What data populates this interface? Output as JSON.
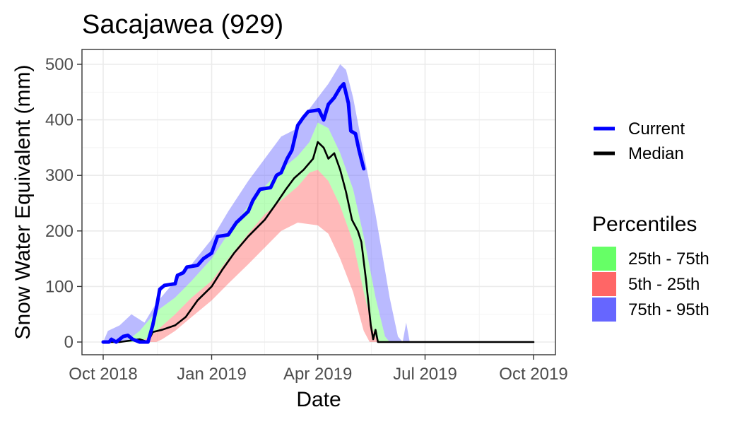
{
  "chart_data": {
    "type": "area",
    "title": "Sacajawea (929)",
    "xlabel": "Date",
    "ylabel": "Snow Water Equivalent (mm)",
    "xlim": [
      "2018-10-01",
      "2019-10-01"
    ],
    "ylim": [
      0,
      525
    ],
    "x_ticks": [
      {
        "date": "2018-10-01",
        "label": "Oct 2018"
      },
      {
        "date": "2019-01-01",
        "label": "Jan 2019"
      },
      {
        "date": "2019-04-01",
        "label": "Apr 2019"
      },
      {
        "date": "2019-07-01",
        "label": "Jul 2019"
      },
      {
        "date": "2019-10-01",
        "label": "Oct 2019"
      }
    ],
    "y_ticks": [
      0,
      100,
      200,
      300,
      400,
      500
    ],
    "grid": true,
    "legend_position": "right",
    "legend": {
      "lines_title": "",
      "lines": [
        {
          "name": "Current",
          "color": "#0000FF"
        },
        {
          "name": "Median",
          "color": "#000000"
        }
      ],
      "bands_title": "Percentiles",
      "bands": [
        {
          "name": "25th - 75th",
          "color": "#66FF66"
        },
        {
          "name": "5th - 25th",
          "color": "#FF6666"
        },
        {
          "name": "75th - 95th",
          "color": "#6666FF"
        }
      ]
    },
    "bands": {
      "p5": [
        [
          "2018-10-01",
          0
        ],
        [
          "2018-11-15",
          0
        ],
        [
          "2018-11-20",
          5
        ],
        [
          "2018-12-01",
          20
        ],
        [
          "2018-12-15",
          45
        ],
        [
          "2019-01-01",
          75
        ],
        [
          "2019-01-15",
          105
        ],
        [
          "2019-02-01",
          140
        ],
        [
          "2019-02-15",
          170
        ],
        [
          "2019-03-01",
          200
        ],
        [
          "2019-03-15",
          215
        ],
        [
          "2019-04-01",
          210
        ],
        [
          "2019-04-10",
          195
        ],
        [
          "2019-04-20",
          150
        ],
        [
          "2019-05-01",
          90
        ],
        [
          "2019-05-10",
          20
        ],
        [
          "2019-05-15",
          0
        ],
        [
          "2019-10-01",
          0
        ]
      ],
      "p25": [
        [
          "2018-10-01",
          0
        ],
        [
          "2018-11-01",
          0
        ],
        [
          "2018-11-10",
          10
        ],
        [
          "2018-12-01",
          50
        ],
        [
          "2018-12-15",
          80
        ],
        [
          "2019-01-01",
          110
        ],
        [
          "2019-01-15",
          150
        ],
        [
          "2019-02-01",
          195
        ],
        [
          "2019-02-15",
          230
        ],
        [
          "2019-03-01",
          255
        ],
        [
          "2019-03-15",
          280
        ],
        [
          "2019-03-25",
          305
        ],
        [
          "2019-04-01",
          310
        ],
        [
          "2019-04-10",
          290
        ],
        [
          "2019-04-20",
          245
        ],
        [
          "2019-05-01",
          180
        ],
        [
          "2019-05-10",
          90
        ],
        [
          "2019-05-18",
          20
        ],
        [
          "2019-05-22",
          0
        ],
        [
          "2019-10-01",
          0
        ]
      ],
      "p75": [
        [
          "2018-10-01",
          0
        ],
        [
          "2018-10-20",
          0
        ],
        [
          "2018-11-01",
          20
        ],
        [
          "2018-11-15",
          55
        ],
        [
          "2018-12-01",
          80
        ],
        [
          "2018-12-15",
          110
        ],
        [
          "2019-01-01",
          150
        ],
        [
          "2019-01-15",
          195
        ],
        [
          "2019-02-01",
          245
        ],
        [
          "2019-02-15",
          280
        ],
        [
          "2019-03-01",
          310
        ],
        [
          "2019-03-15",
          335
        ],
        [
          "2019-03-25",
          360
        ],
        [
          "2019-04-01",
          395
        ],
        [
          "2019-04-10",
          385
        ],
        [
          "2019-04-20",
          340
        ],
        [
          "2019-05-01",
          275
        ],
        [
          "2019-05-10",
          190
        ],
        [
          "2019-05-20",
          80
        ],
        [
          "2019-05-28",
          10
        ],
        [
          "2019-06-01",
          0
        ],
        [
          "2019-10-01",
          0
        ]
      ],
      "p95": [
        [
          "2018-10-01",
          0
        ],
        [
          "2018-10-05",
          20
        ],
        [
          "2018-10-15",
          30
        ],
        [
          "2018-10-25",
          50
        ],
        [
          "2018-11-05",
          35
        ],
        [
          "2018-11-15",
          70
        ],
        [
          "2018-12-01",
          110
        ],
        [
          "2018-12-15",
          140
        ],
        [
          "2019-01-01",
          185
        ],
        [
          "2019-01-15",
          235
        ],
        [
          "2019-02-01",
          290
        ],
        [
          "2019-02-15",
          330
        ],
        [
          "2019-03-01",
          370
        ],
        [
          "2019-03-15",
          385
        ],
        [
          "2019-03-25",
          420
        ],
        [
          "2019-04-01",
          440
        ],
        [
          "2019-04-10",
          465
        ],
        [
          "2019-04-20",
          500
        ],
        [
          "2019-04-25",
          490
        ],
        [
          "2019-05-01",
          440
        ],
        [
          "2019-05-10",
          340
        ],
        [
          "2019-05-20",
          230
        ],
        [
          "2019-06-01",
          80
        ],
        [
          "2019-06-08",
          10
        ],
        [
          "2019-06-12",
          0
        ],
        [
          "2019-06-15",
          35
        ],
        [
          "2019-06-18",
          0
        ],
        [
          "2019-10-01",
          0
        ]
      ]
    },
    "series": [
      {
        "name": "Current",
        "points": [
          [
            "2018-10-01",
            0
          ],
          [
            "2018-10-06",
            0
          ],
          [
            "2018-10-08",
            5
          ],
          [
            "2018-10-12",
            0
          ],
          [
            "2018-10-18",
            10
          ],
          [
            "2018-10-22",
            12
          ],
          [
            "2018-10-26",
            5
          ],
          [
            "2018-11-01",
            0
          ],
          [
            "2018-11-08",
            0
          ],
          [
            "2018-11-12",
            30
          ],
          [
            "2018-11-15",
            60
          ],
          [
            "2018-11-18",
            95
          ],
          [
            "2018-11-22",
            102
          ],
          [
            "2018-12-01",
            105
          ],
          [
            "2018-12-03",
            120
          ],
          [
            "2018-12-08",
            125
          ],
          [
            "2018-12-11",
            135
          ],
          [
            "2018-12-20",
            138
          ],
          [
            "2018-12-25",
            150
          ],
          [
            "2019-01-01",
            160
          ],
          [
            "2019-01-06",
            190
          ],
          [
            "2019-01-15",
            193
          ],
          [
            "2019-01-22",
            215
          ],
          [
            "2019-02-01",
            235
          ],
          [
            "2019-02-05",
            255
          ],
          [
            "2019-02-11",
            275
          ],
          [
            "2019-02-20",
            278
          ],
          [
            "2019-02-25",
            300
          ],
          [
            "2019-03-01",
            305
          ],
          [
            "2019-03-06",
            330
          ],
          [
            "2019-03-10",
            345
          ],
          [
            "2019-03-15",
            390
          ],
          [
            "2019-03-20",
            405
          ],
          [
            "2019-03-24",
            415
          ],
          [
            "2019-04-02",
            418
          ],
          [
            "2019-04-06",
            400
          ],
          [
            "2019-04-10",
            428
          ],
          [
            "2019-04-15",
            440
          ],
          [
            "2019-04-20",
            458
          ],
          [
            "2019-04-23",
            465
          ],
          [
            "2019-04-27",
            430
          ],
          [
            "2019-04-29",
            380
          ],
          [
            "2019-05-03",
            375
          ],
          [
            "2019-05-06",
            345
          ],
          [
            "2019-05-10",
            312
          ]
        ]
      },
      {
        "name": "Median",
        "points": [
          [
            "2018-10-01",
            0
          ],
          [
            "2018-10-15",
            0
          ],
          [
            "2018-11-01",
            5
          ],
          [
            "2018-11-08",
            0
          ],
          [
            "2018-11-12",
            18
          ],
          [
            "2018-11-20",
            22
          ],
          [
            "2018-12-01",
            30
          ],
          [
            "2018-12-10",
            45
          ],
          [
            "2018-12-20",
            75
          ],
          [
            "2019-01-01",
            100
          ],
          [
            "2019-01-10",
            130
          ],
          [
            "2019-01-20",
            160
          ],
          [
            "2019-02-01",
            190
          ],
          [
            "2019-02-15",
            220
          ],
          [
            "2019-02-25",
            250
          ],
          [
            "2019-03-05",
            275
          ],
          [
            "2019-03-12",
            295
          ],
          [
            "2019-03-20",
            310
          ],
          [
            "2019-03-28",
            330
          ],
          [
            "2019-04-01",
            360
          ],
          [
            "2019-04-06",
            350
          ],
          [
            "2019-04-10",
            330
          ],
          [
            "2019-04-15",
            340
          ],
          [
            "2019-04-20",
            310
          ],
          [
            "2019-04-25",
            270
          ],
          [
            "2019-04-30",
            220
          ],
          [
            "2019-05-05",
            200
          ],
          [
            "2019-05-08",
            180
          ],
          [
            "2019-05-12",
            110
          ],
          [
            "2019-05-16",
            30
          ],
          [
            "2019-05-18",
            5
          ],
          [
            "2019-05-20",
            22
          ],
          [
            "2019-05-22",
            0
          ],
          [
            "2019-10-01",
            0
          ]
        ]
      }
    ]
  }
}
